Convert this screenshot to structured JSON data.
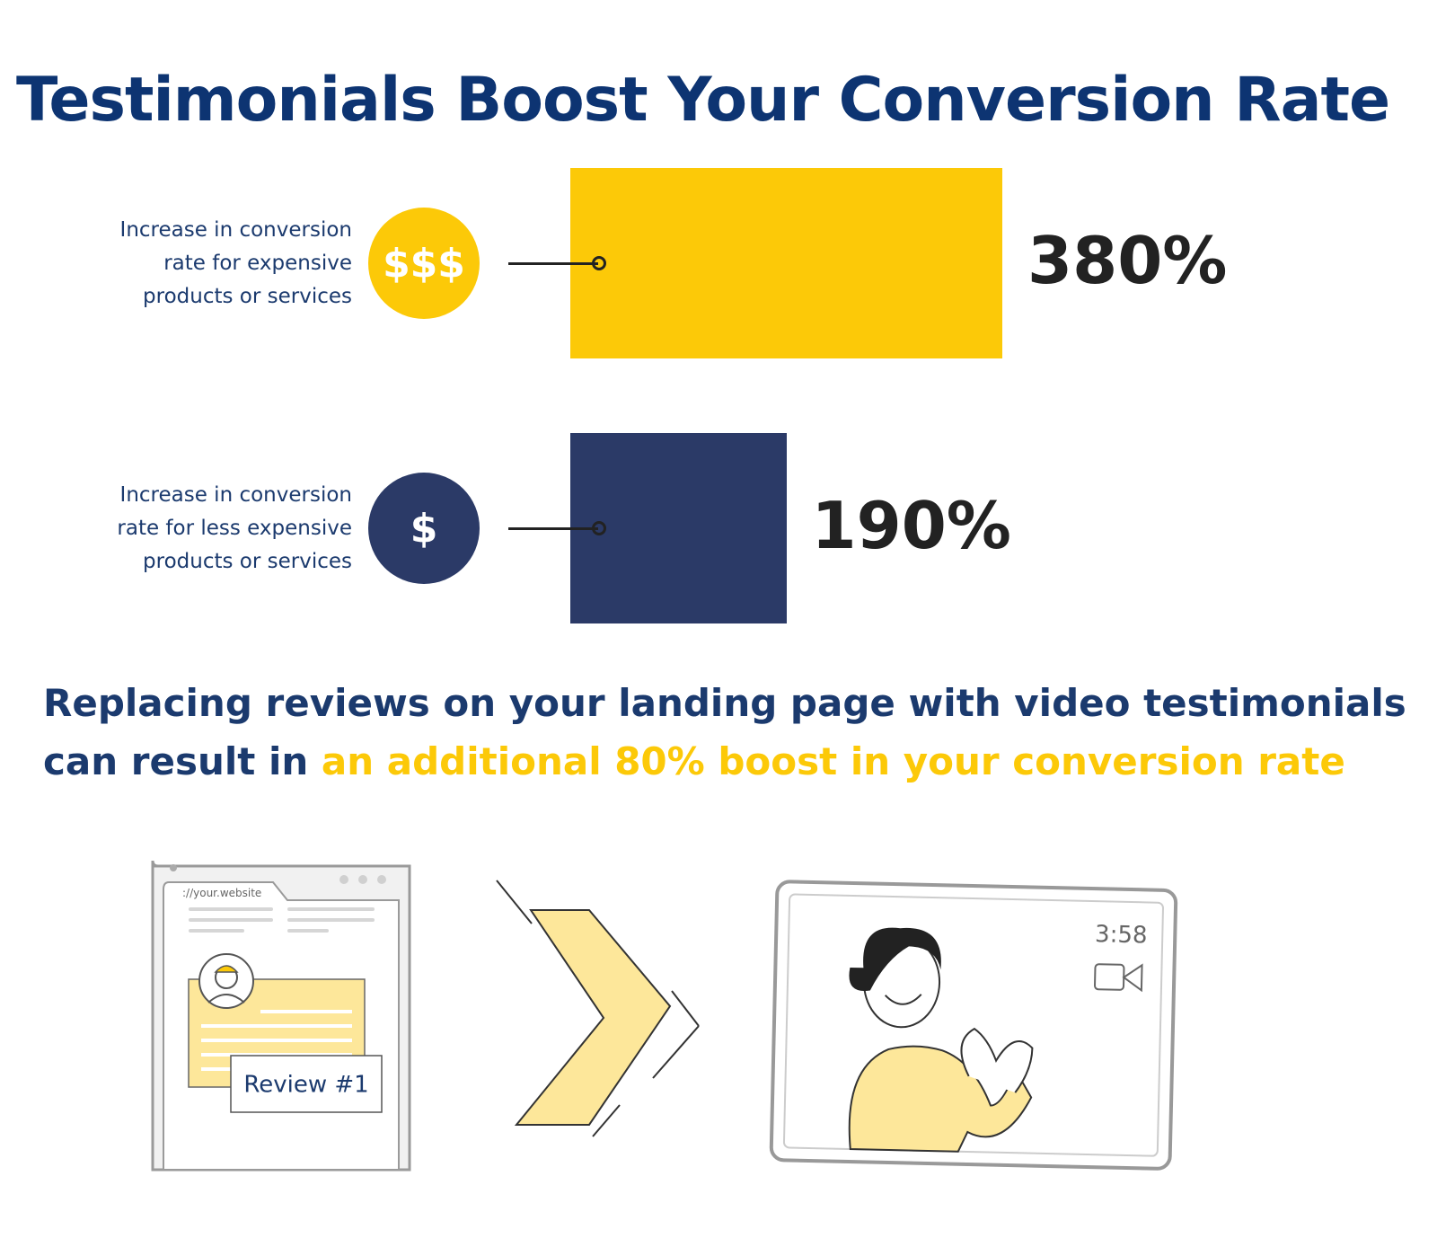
{
  "chart_data": {
    "type": "bar",
    "orientation": "horizontal",
    "title": "Testimonials Boost Your Conversion Rate",
    "categories": [
      "Increase in conversion rate for expensive products or services",
      "Increase in conversion rate for less expensive products or services"
    ],
    "icons": [
      "$$$",
      "$"
    ],
    "values": [
      380,
      190
    ],
    "value_labels": [
      "380%",
      "190%"
    ],
    "colors": [
      "#fcc908",
      "#2b3a67"
    ]
  },
  "statement": {
    "line1": "Replacing reviews on your landing page with video testimonials",
    "line2": "can result in",
    "highlight": "an additional 80% boost in your conversion rate"
  },
  "illustration": {
    "url": "://your.website",
    "review_label": "Review #1",
    "video_time": "3:58"
  }
}
